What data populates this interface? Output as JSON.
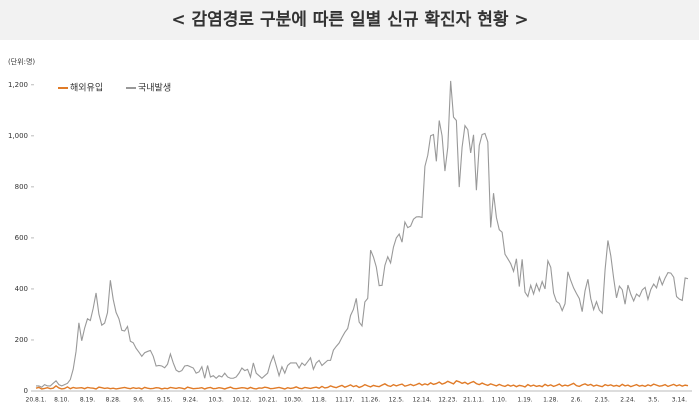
{
  "chart_data": {
    "type": "line",
    "title": "< 감염경로 구분에 따른 일별 신규 확진자 현황 >",
    "unit_label": "(단위:명)",
    "categories": [
      "20.8.1.",
      null,
      null,
      null,
      null,
      null,
      null,
      null,
      null,
      "8.10.",
      null,
      null,
      null,
      null,
      null,
      null,
      null,
      null,
      "8.19.",
      null,
      null,
      null,
      null,
      null,
      null,
      null,
      null,
      "8.28.",
      null,
      null,
      null,
      null,
      null,
      null,
      null,
      null,
      "9.6.",
      null,
      null,
      null,
      null,
      null,
      null,
      null,
      null,
      "9.15.",
      null,
      null,
      null,
      null,
      null,
      null,
      null,
      null,
      "9.24.",
      null,
      null,
      null,
      null,
      null,
      null,
      null,
      null,
      "10.3.",
      null,
      null,
      null,
      null,
      null,
      null,
      null,
      null,
      "10.12.",
      null,
      null,
      null,
      null,
      null,
      null,
      null,
      null,
      "10.21.",
      null,
      null,
      null,
      null,
      null,
      null,
      null,
      null,
      "10.30.",
      null,
      null,
      null,
      null,
      null,
      null,
      null,
      null,
      "11.8.",
      null,
      null,
      null,
      null,
      null,
      null,
      null,
      null,
      "11.17.",
      null,
      null,
      null,
      null,
      null,
      null,
      null,
      null,
      "11.26.",
      null,
      null,
      null,
      null,
      null,
      null,
      null,
      null,
      "12.5.",
      null,
      null,
      null,
      null,
      null,
      null,
      null,
      null,
      "12.14.",
      null,
      null,
      null,
      null,
      null,
      null,
      null,
      null,
      "12.23.",
      null,
      null,
      null,
      null,
      null,
      null,
      null,
      null,
      "21.1.1.",
      null,
      null,
      null,
      null,
      null,
      null,
      null,
      null,
      "1.10.",
      null,
      null,
      null,
      null,
      null,
      null,
      null,
      null,
      "1.19.",
      null,
      null,
      null,
      null,
      null,
      null,
      null,
      null,
      "1.28.",
      null,
      null,
      null,
      null,
      null,
      null,
      null,
      null,
      "2.6.",
      null,
      null,
      null,
      null,
      null,
      null,
      null,
      null,
      "2.15.",
      null,
      null,
      null,
      null,
      null,
      null,
      null,
      null,
      "2.24.",
      null,
      null,
      null,
      null,
      null,
      null,
      null,
      null,
      "3.5.",
      null,
      null,
      null,
      null,
      null,
      null,
      null,
      null,
      "3.14.",
      null,
      null,
      null
    ],
    "series": [
      {
        "name": "해외유입",
        "color": "#e07b28",
        "values": [
          11,
          14,
          8,
          10,
          13,
          9,
          11,
          20,
          12,
          8,
          10,
          16,
          9,
          14,
          11,
          12,
          13,
          9,
          14,
          12,
          11,
          8,
          15,
          13,
          10,
          12,
          9,
          11,
          8,
          10,
          12,
          14,
          11,
          9,
          13,
          10,
          12,
          8,
          14,
          11,
          9,
          10,
          13,
          12,
          8,
          11,
          9,
          14,
          12,
          10,
          13,
          11,
          8,
          15,
          12,
          9,
          10,
          11,
          13,
          8,
          12,
          14,
          9,
          10,
          13,
          11,
          8,
          12,
          15,
          10,
          9,
          11,
          13,
          12,
          9,
          14,
          10,
          8,
          12,
          11,
          15,
          13,
          9,
          10,
          12,
          14,
          11,
          8,
          13,
          10,
          12,
          16,
          11,
          9,
          14,
          12,
          10,
          13,
          15,
          11,
          18,
          12,
          14,
          20,
          16,
          13,
          18,
          22,
          15,
          19,
          24,
          17,
          21,
          14,
          18,
          25,
          20,
          16,
          22,
          19,
          17,
          23,
          28,
          21,
          18,
          25,
          20,
          24,
          27,
          19,
          22,
          26,
          21,
          25,
          30,
          23,
          28,
          24,
          32,
          26,
          29,
          35,
          27,
          31,
          38,
          33,
          28,
          40,
          36,
          30,
          34,
          27,
          33,
          37,
          29,
          25,
          31,
          26,
          22,
          28,
          24,
          20,
          26,
          21,
          18,
          24,
          19,
          23,
          17,
          22,
          20,
          16,
          25,
          19,
          23,
          18,
          21,
          17,
          26,
          20,
          24,
          18,
          22,
          27,
          19,
          23,
          20,
          25,
          30,
          21,
          18,
          24,
          28,
          22,
          26,
          19,
          23,
          20,
          17,
          25,
          21,
          24,
          19,
          22,
          18,
          26,
          20,
          23,
          17,
          21,
          25,
          19,
          22,
          18,
          24,
          20,
          27,
          23,
          19,
          21,
          25,
          18,
          22,
          26,
          20,
          24,
          19,
          23,
          21
        ]
      },
      {
        "name": "국내발생",
        "color": "#999999",
        "values": [
          20,
          20,
          15,
          25,
          20,
          20,
          30,
          40,
          25,
          20,
          25,
          30,
          45,
          85,
          155,
          267,
          197,
          246,
          283,
          276,
          324,
          384,
          301,
          258,
          266,
          307,
          434,
          359,
          308,
          283,
          238,
          235,
          253,
          195,
          189,
          167,
          152,
          136,
          150,
          155,
          159,
          136,
          98,
          100,
          98,
          91,
          105,
          145,
          110,
          82,
          75,
          80,
          98,
          100,
          95,
          90,
          70,
          75,
          95,
          50,
          100,
          55,
          60,
          50,
          60,
          55,
          70,
          55,
          50,
          50,
          55,
          70,
          90,
          80,
          85,
          55,
          110,
          70,
          60,
          50,
          60,
          70,
          110,
          138,
          100,
          60,
          95,
          70,
          100,
          110,
          110,
          110,
          90,
          110,
          100,
          115,
          130,
          85,
          110,
          120,
          100,
          110,
          120,
          120,
          160,
          175,
          188,
          210,
          230,
          245,
          296,
          320,
          363,
          270,
          255,
          349,
          363,
          552,
          525,
          486,
          413,
          414,
          492,
          526,
          502,
          564,
          600,
          615,
          583,
          662,
          640,
          646,
          673,
          682,
          683,
          680,
          880,
          924,
          1000,
          1005,
          900,
          1060,
          1000,
          862,
          955,
          1215,
          1073,
          1060,
          799,
          955,
          1040,
          1024,
          933,
          1004,
          787,
          962,
          1005,
          1009,
          976,
          641,
          775,
          680,
          632,
          622,
          536,
          518,
          499,
          469,
          518,
          409,
          516,
          387,
          370,
          414,
          380,
          420,
          392,
          429,
          400,
          510,
          485,
          384,
          351,
          343,
          315,
          342,
          467,
          433,
          404,
          382,
          362,
          311,
          393,
          438,
          362,
          319,
          350,
          317,
          305,
          475,
          590,
          530,
          442,
          365,
          411,
          397,
          340,
          415,
          379,
          353,
          380,
          370,
          396,
          406,
          359,
          398,
          419,
          404,
          446,
          416,
          443,
          464,
          462,
          446,
          370,
          360,
          355,
          443,
          440
        ]
      }
    ],
    "ylim": [
      0,
      1250
    ],
    "yticks": [
      0,
      200,
      400,
      600,
      800,
      {
        "value": 1000,
        "label": "1,000"
      },
      {
        "value": 1200,
        "label": "1,200"
      }
    ],
    "grid": false
  }
}
